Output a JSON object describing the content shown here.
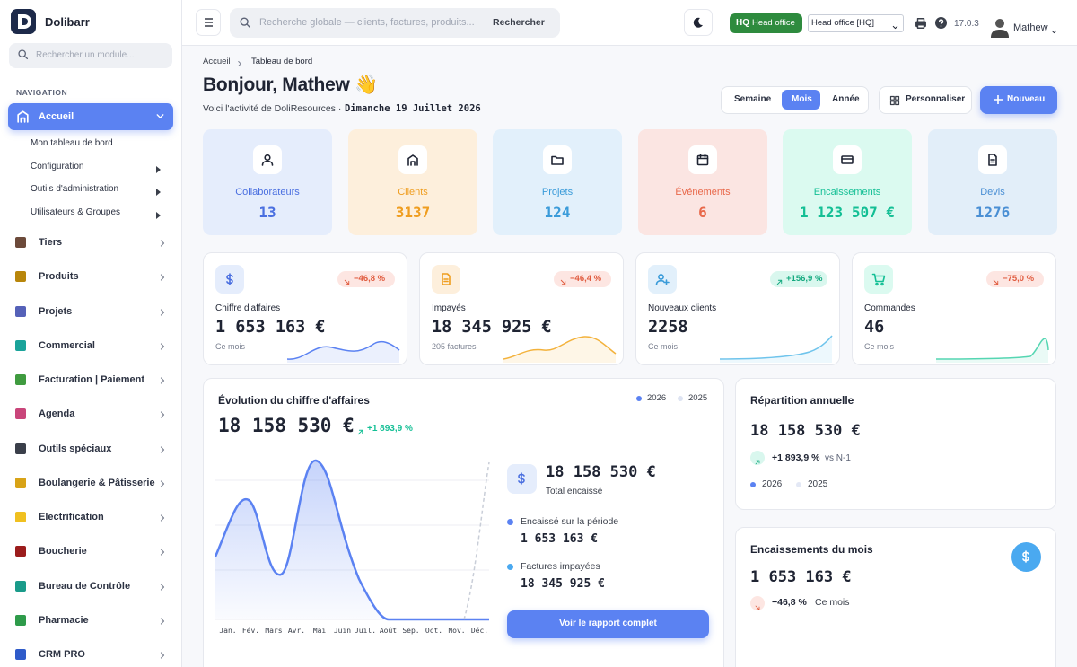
{
  "sidebar": {
    "brand": "Dolibarr",
    "search_placeholder": "Rechercher un module...",
    "section": "NAVIGATION",
    "menu": [
      {
        "label": "Accueil",
        "children": [
          "Mon tableau de bord",
          "Configuration",
          "Outils d'administration",
          "Utilisateurs & Groupes"
        ]
      },
      {
        "label": "Tiers"
      },
      {
        "label": "Produits"
      },
      {
        "label": "Projets"
      },
      {
        "label": "Commercial"
      },
      {
        "label": "Facturation | Paiement"
      },
      {
        "label": "Agenda"
      },
      {
        "label": "Outils spéciaux"
      },
      {
        "label": "Boulangerie & Pâtisserie"
      },
      {
        "label": "Electrification"
      },
      {
        "label": "Boucherie"
      },
      {
        "label": "Bureau de Contrôle"
      },
      {
        "label": "Pharmacie"
      },
      {
        "label": "CRM PRO"
      }
    ]
  },
  "topbar": {
    "search_placeholder": "Recherche globale — clients, factures, produits...",
    "search_button": "Rechercher",
    "entity_code": "HQ",
    "entity_name": "Head office",
    "entity_select": "Head office [HQ]",
    "version": "17.0.3",
    "user": "Mathew"
  },
  "header": {
    "breadcrumb": [
      "Accueil",
      "Tableau de bord"
    ],
    "greeting": "Bonjour, Mathew 👋",
    "subtitle": "Voici l'activité de DoliResources ·",
    "date": "Dimanche 19 Juillet 2026",
    "periods": [
      "Semaine",
      "Mois",
      "Année"
    ],
    "customize": "Personnaliser",
    "new": "Nouveau"
  },
  "stats": [
    {
      "label": "Collaborateurs",
      "value": "13"
    },
    {
      "label": "Clients",
      "value": "3137"
    },
    {
      "label": "Projets",
      "value": "124"
    },
    {
      "label": "Événements",
      "value": "6"
    },
    {
      "label": "Encaissements",
      "value": "1 123 507 €"
    },
    {
      "label": "Devis",
      "value": "1276"
    }
  ],
  "kpis": [
    {
      "label": "Chiffre d'affaires",
      "change": "−46,8 %",
      "value": "1 653 163 €",
      "note": "Ce mois"
    },
    {
      "label": "Impayés",
      "change": "−46,4 %",
      "value": "18 345 925 €",
      "note": "205 factures"
    },
    {
      "label": "Nouveaux clients",
      "change": "+156,9 %",
      "value": "2258",
      "note": "Ce mois"
    },
    {
      "label": "Commandes",
      "change": "−75,0 %",
      "value": "46",
      "note": "Ce mois"
    }
  ],
  "revenue": {
    "title": "Évolution du chiffre d'affaires",
    "total": "18 158 530 €",
    "change": "+1 893,9 %",
    "legend": [
      "2026",
      "2025"
    ],
    "months": [
      "Jan.",
      "Fév.",
      "Mars",
      "Avr.",
      "Mai",
      "Juin",
      "Juil.",
      "Août",
      "Sep.",
      "Oct.",
      "Nov.",
      "Déc."
    ],
    "summary": {
      "total": "18 158 530 €",
      "total_label": "Total encaissé",
      "items": [
        {
          "label": "Encaissé sur la période",
          "value": "1 653 163 €"
        },
        {
          "label": "Factures impayées",
          "value": "18 345 925 €"
        }
      ],
      "button": "Voir le rapport complet"
    }
  },
  "annual": {
    "title": "Répartition annuelle",
    "total": "18 158 530 €",
    "change": "+1 893,9 %",
    "comparison": "vs N-1",
    "legend": [
      "2026",
      "2025"
    ]
  },
  "monthly": {
    "title": "Encaissements du mois",
    "value": "1 653 163 €",
    "change": "−46,8 %",
    "note": "Ce mois"
  }
}
